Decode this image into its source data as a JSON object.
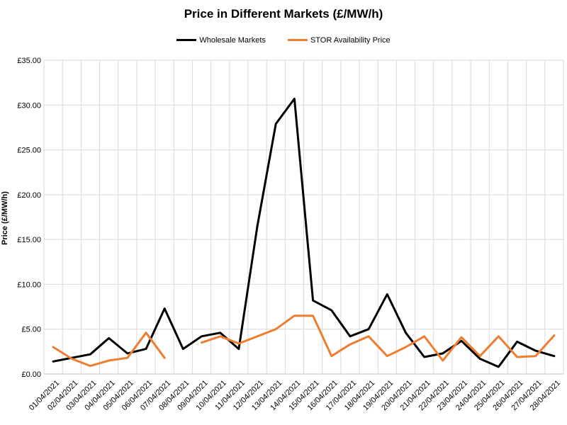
{
  "chart_data": {
    "type": "line",
    "title": "Price in Different Markets (£/MW/h)",
    "ylabel": "Price (£/MW/h)",
    "xlabel": "",
    "ylim": [
      0,
      35
    ],
    "yticks": [
      "£0.00",
      "£5.00",
      "£10.00",
      "£15.00",
      "£20.00",
      "£25.00",
      "£30.00",
      "£35.00"
    ],
    "grid": true,
    "legend_position": "top",
    "categories": [
      "01/04/2021",
      "02/04/2021",
      "03/04/2021",
      "04/04/2021",
      "05/04/2021",
      "06/04/2021",
      "07/04/2021",
      "08/04/2021",
      "09/04/2021",
      "10/04/2021",
      "11/04/2021",
      "12/04/2021",
      "13/04/2021",
      "14/04/2021",
      "15/04/2021",
      "16/04/2021",
      "17/04/2021",
      "18/04/2021",
      "19/04/2021",
      "20/04/2021",
      "21/04/2021",
      "22/04/2021",
      "23/04/2021",
      "24/04/2021",
      "25/04/2021",
      "26/04/2021",
      "27/04/2021",
      "28/04/2021"
    ],
    "series": [
      {
        "name": "Wholesale Markets",
        "color": "#000000",
        "values": [
          1.4,
          1.8,
          2.2,
          4.0,
          2.3,
          2.8,
          7.3,
          2.8,
          4.2,
          4.6,
          2.8,
          16.5,
          27.9,
          30.7,
          8.2,
          7.1,
          4.2,
          5.0,
          8.9,
          4.6,
          1.9,
          2.3,
          3.7,
          1.7,
          0.8,
          3.6,
          2.6,
          2.0
        ]
      },
      {
        "name": "STOR Availability Price",
        "color": "#ED7D31",
        "values": [
          3.0,
          1.7,
          0.9,
          1.5,
          1.8,
          4.6,
          1.8,
          null,
          3.5,
          4.2,
          3.4,
          4.2,
          5.0,
          6.5,
          6.5,
          2.0,
          3.3,
          4.2,
          2.0,
          3.0,
          4.2,
          1.5,
          4.1,
          2.0,
          4.2,
          1.9,
          2.0,
          4.3
        ]
      }
    ]
  }
}
